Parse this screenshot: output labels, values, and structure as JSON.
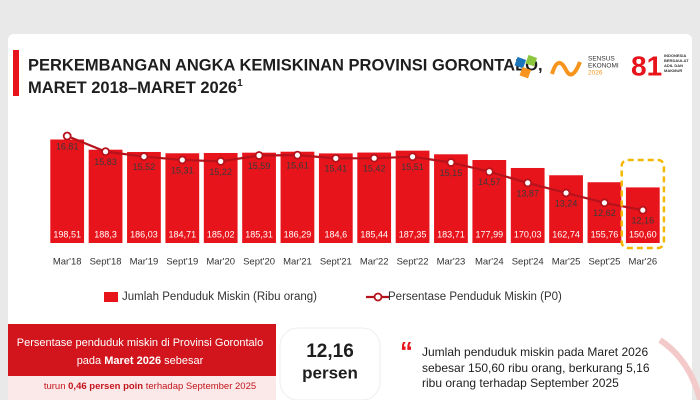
{
  "chart_data": {
    "type": "bar",
    "title": "PERKEMBANGAN ANGKA KEMISKINAN PROVINSI GORONTALO,",
    "subtitle": "MARET 2018–MARET 2026",
    "subtitle_note": "1",
    "categories": [
      "Mar'18",
      "Sept'18",
      "Mar'19",
      "Sept'19",
      "Mar'20",
      "Sept'20",
      "Mar'21",
      "Sept'21",
      "Mar'22",
      "Sept'22",
      "Mar'23",
      "Mar'24",
      "Sept'24",
      "Mar'25",
      "Sept'25",
      "Mar'26"
    ],
    "series": [
      {
        "name": "Jumlah Penduduk Miskin (Ribu orang)",
        "type": "bar",
        "color": "#e8141b",
        "values": [
          198.51,
          188.3,
          186.03,
          184.71,
          185.02,
          185.31,
          186.29,
          184.6,
          185.44,
          187.35,
          183.71,
          177.99,
          170.03,
          162.74,
          155.76,
          150.6
        ],
        "value_labels": [
          "198,51",
          "188,3",
          "186,03",
          "184,71",
          "185,02",
          "185,31",
          "186,29",
          "184,6",
          "185,44",
          "187,35",
          "183,71",
          "177,99",
          "170,03",
          "162,74",
          "155,76",
          "150,60"
        ]
      },
      {
        "name": "Persentase Penduduk Miskin (P0)",
        "type": "line",
        "axis": "y2",
        "color": "#b5121b",
        "values": [
          16.81,
          15.83,
          15.52,
          15.31,
          15.22,
          15.59,
          15.61,
          15.41,
          15.42,
          15.51,
          15.15,
          14.57,
          13.87,
          13.24,
          12.62,
          12.16
        ],
        "value_labels": [
          "16,81",
          "15,83",
          "15,52",
          "15,31",
          "15,22",
          "15,59",
          "15,61",
          "15,41",
          "15,42",
          "15,51",
          "15,15",
          "14,57",
          "13,87",
          "13,24",
          "12,62",
          "12,16"
        ]
      }
    ],
    "ylim": [
      95,
      205
    ],
    "y2lim": [
      10.1,
      17.0
    ],
    "legend": "bottom",
    "grid": false
  },
  "logos": {
    "sensus": [
      "SENSUS",
      "EKONOMI",
      "2026"
    ],
    "anniversary": "81",
    "motto": [
      "INDONESIA",
      "BERDAULAT",
      "ADIL DAN",
      "MAKMUR"
    ]
  },
  "summary": {
    "line1": "Persentase penduduk miskin di Provinsi Gorontalo",
    "line2_pre": "pada ",
    "line2_bold": "Maret 2026",
    "line2_post": " sebesar",
    "figure": "12,16",
    "figure_unit": "persen",
    "change_pre": "turun ",
    "change_bold": "0,46 persen poin",
    "change_post": " terhadap September 2025"
  },
  "quote": {
    "lines": [
      "Jumlah penduduk miskin pada Maret 2026",
      "sebesar 150,60 ribu orang, berkurang 5,16",
      "ribu orang terhadap September 2025"
    ]
  }
}
